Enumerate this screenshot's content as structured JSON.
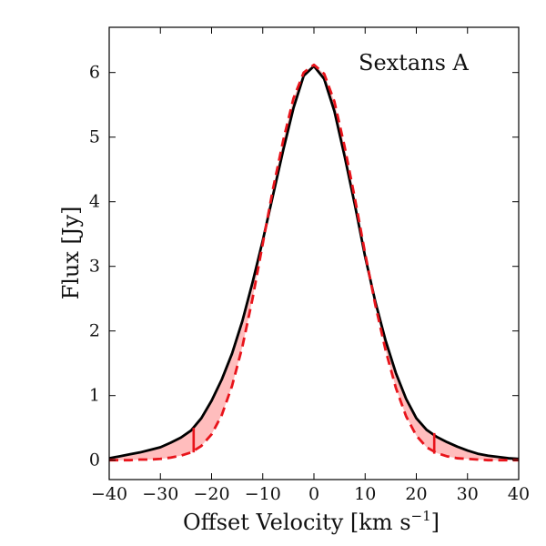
{
  "chart_data": {
    "type": "line",
    "title": "",
    "annotation": "Sextans A",
    "xlabel": "Offset Velocity [km s",
    "xlabel_superscript": "−1",
    "xlabel_suffix": "]",
    "ylabel": "Flux [Jy]",
    "xlim": [
      -40,
      40
    ],
    "ylim": [
      -0.3,
      6.7
    ],
    "xticks": [
      -40,
      -30,
      -20,
      -10,
      0,
      10,
      20,
      30,
      40
    ],
    "xtick_labels": [
      "−40",
      "−30",
      "−20",
      "−10",
      "0",
      "10",
      "20",
      "30",
      "40"
    ],
    "yticks": [
      0,
      1,
      2,
      3,
      4,
      5,
      6
    ],
    "ytick_labels": [
      "0",
      "1",
      "2",
      "3",
      "4",
      "5",
      "6"
    ],
    "grid": false,
    "legend": "none",
    "series": [
      {
        "style": "solid",
        "color": "#000000",
        "x": [
          -40,
          -38,
          -36,
          -34,
          -32,
          -30,
          -28,
          -26,
          -24,
          -22,
          -20,
          -18,
          -16,
          -14,
          -12,
          -10,
          -8,
          -6,
          -4,
          -2,
          0,
          2,
          4,
          6,
          8,
          10,
          12,
          14,
          16,
          18,
          20,
          22,
          24,
          26,
          28,
          30,
          32,
          34,
          36,
          38,
          40
        ],
        "y": [
          0.03,
          0.06,
          0.09,
          0.12,
          0.16,
          0.2,
          0.27,
          0.35,
          0.46,
          0.65,
          0.92,
          1.25,
          1.65,
          2.15,
          2.75,
          3.4,
          4.1,
          4.8,
          5.45,
          5.95,
          6.1,
          5.9,
          5.4,
          4.7,
          3.95,
          3.15,
          2.45,
          1.85,
          1.35,
          0.95,
          0.65,
          0.47,
          0.36,
          0.28,
          0.21,
          0.15,
          0.1,
          0.07,
          0.05,
          0.03,
          0.02
        ]
      },
      {
        "style": "dashed",
        "color": "#e8141b",
        "x": [
          -40,
          -38,
          -36,
          -34,
          -32,
          -30,
          -28,
          -26,
          -24,
          -22,
          -20,
          -18,
          -16,
          -14,
          -12,
          -10,
          -8,
          -6,
          -4,
          -2,
          0,
          2,
          4,
          6,
          8,
          10,
          12,
          14,
          16,
          18,
          20,
          22,
          24,
          26,
          28,
          30,
          32,
          34,
          36,
          38,
          40
        ],
        "y": [
          0.0,
          0.0,
          0.0,
          0.01,
          0.01,
          0.02,
          0.04,
          0.07,
          0.12,
          0.22,
          0.4,
          0.7,
          1.15,
          1.75,
          2.5,
          3.35,
          4.2,
          4.95,
          5.6,
          6.0,
          6.12,
          5.98,
          5.55,
          4.85,
          4.05,
          3.2,
          2.4,
          1.7,
          1.12,
          0.68,
          0.38,
          0.2,
          0.11,
          0.06,
          0.03,
          0.02,
          0.01,
          0.0,
          0.0,
          0.0,
          0.0
        ]
      }
    ],
    "shaded_region": {
      "between": "solid-and-dashed",
      "color": "#ff9999",
      "opacity": 0.65
    },
    "markers": [
      {
        "x": -23.5,
        "y_bottom": 0.12,
        "y_top": 0.5,
        "color": "#e8141b"
      },
      {
        "x": 23.5,
        "y_bottom": 0.1,
        "y_top": 0.42,
        "color": "#e8141b"
      }
    ]
  }
}
